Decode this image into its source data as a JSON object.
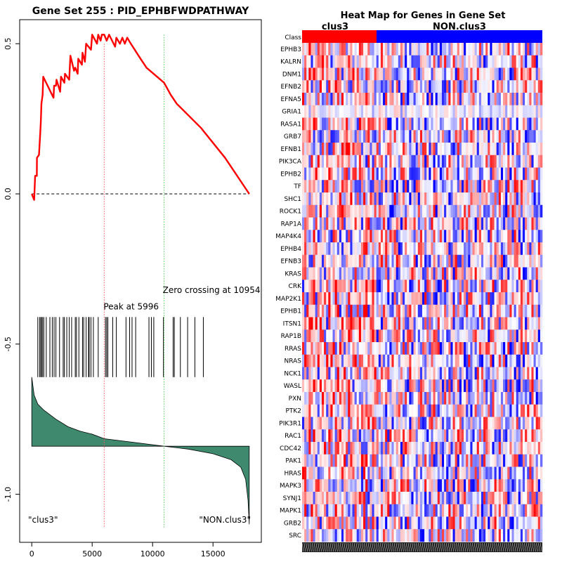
{
  "chart_data": [
    {
      "type": "line",
      "title": "Gene Set  255 : PID_EPHBFWDPATHWAY",
      "xlim": [
        -1000,
        19000
      ],
      "ylim": [
        -1.16,
        0.58
      ],
      "x_ticks": [
        0,
        5000,
        10000,
        15000
      ],
      "x_tick_labels": [
        "0",
        "5000",
        "10000",
        "15000"
      ],
      "y_ticks": [
        0.5,
        0.0,
        -0.5,
        -1.0
      ],
      "y_tick_labels": [
        "0.5",
        "0.0",
        "-0.5",
        "-1.0"
      ],
      "n_genes": 18000,
      "enrichment_curve": {
        "color": "#ff0000",
        "points": [
          [
            0,
            0.0
          ],
          [
            200,
            -0.02
          ],
          [
            280,
            0.06
          ],
          [
            420,
            0.06
          ],
          [
            430,
            0.12
          ],
          [
            600,
            0.13
          ],
          [
            700,
            0.2
          ],
          [
            750,
            0.24
          ],
          [
            800,
            0.3
          ],
          [
            900,
            0.33
          ],
          [
            950,
            0.39
          ],
          [
            1800,
            0.32
          ],
          [
            1850,
            0.36
          ],
          [
            2000,
            0.36
          ],
          [
            2050,
            0.38
          ],
          [
            2350,
            0.34
          ],
          [
            2420,
            0.39
          ],
          [
            2700,
            0.37
          ],
          [
            2750,
            0.4
          ],
          [
            3100,
            0.38
          ],
          [
            3200,
            0.46
          ],
          [
            3500,
            0.41
          ],
          [
            3600,
            0.42
          ],
          [
            3800,
            0.4
          ],
          [
            3850,
            0.45
          ],
          [
            4150,
            0.43
          ],
          [
            4200,
            0.47
          ],
          [
            4400,
            0.44
          ],
          [
            4500,
            0.5
          ],
          [
            4900,
            0.48
          ],
          [
            5000,
            0.53
          ],
          [
            5400,
            0.5
          ],
          [
            5500,
            0.53
          ],
          [
            5700,
            0.51
          ],
          [
            5800,
            0.53
          ],
          [
            5996,
            0.53
          ],
          [
            6200,
            0.51
          ],
          [
            6400,
            0.53
          ],
          [
            6900,
            0.49
          ],
          [
            7000,
            0.52
          ],
          [
            7300,
            0.5
          ],
          [
            7500,
            0.52
          ],
          [
            7700,
            0.5
          ],
          [
            7900,
            0.52
          ],
          [
            8200,
            0.5
          ],
          [
            9000,
            0.45
          ],
          [
            9500,
            0.42
          ],
          [
            10954,
            0.37
          ],
          [
            11500,
            0.33
          ],
          [
            12000,
            0.3
          ],
          [
            14000,
            0.22
          ],
          [
            14200,
            0.21
          ],
          [
            15000,
            0.17
          ],
          [
            16000,
            0.12
          ],
          [
            17000,
            0.06
          ],
          [
            18000,
            0.0
          ]
        ]
      },
      "baseline_y": 0.0,
      "peak": {
        "x": 5996,
        "label": "Peak at 5996",
        "color": "#ff5555"
      },
      "zero_crossing": {
        "x": 10954,
        "label": "Zero crossing at 10954",
        "color": "#55cc55"
      },
      "hit_positions": [
        500,
        650,
        750,
        800,
        900,
        1000,
        1200,
        1500,
        1700,
        1850,
        2000,
        2300,
        2600,
        2700,
        2900,
        3100,
        3300,
        3600,
        3700,
        3900,
        4200,
        4300,
        4500,
        4700,
        4750,
        4900,
        5100,
        5500,
        6100,
        6200,
        6300,
        6700,
        7000,
        7800,
        8100,
        8300,
        8600,
        9700,
        9900,
        10100,
        10900,
        11700,
        11800,
        12300,
        12900,
        13500,
        14200
      ],
      "hit_band": [
        -0.41,
        -0.61
      ],
      "ranked_metric": {
        "fill_color": "#3f8a6f",
        "baseline_y": -0.84,
        "points": [
          [
            0,
            -0.61
          ],
          [
            200,
            -0.67
          ],
          [
            500,
            -0.7
          ],
          [
            1000,
            -0.72
          ],
          [
            2000,
            -0.75
          ],
          [
            3000,
            -0.775
          ],
          [
            4000,
            -0.79
          ],
          [
            5000,
            -0.8
          ],
          [
            6000,
            -0.815
          ],
          [
            8000,
            -0.825
          ],
          [
            10954,
            -0.84
          ],
          [
            13000,
            -0.85
          ],
          [
            15000,
            -0.865
          ],
          [
            16500,
            -0.885
          ],
          [
            17300,
            -0.91
          ],
          [
            17700,
            -0.95
          ],
          [
            17900,
            -1.02
          ],
          [
            18000,
            -1.1
          ]
        ]
      },
      "left_label": "\"clus3\"",
      "right_label": "\"NON.clus3\""
    },
    {
      "type": "heatmap",
      "title": "Heat Map for Genes in Gene Set",
      "class_row_label": "Class",
      "classes": [
        {
          "name": "clus3",
          "color": "#ff0000",
          "fraction": 0.31
        },
        {
          "name": "NON.clus3",
          "color": "#0000ff",
          "fraction": 0.69
        }
      ],
      "genes": [
        "EPHB3",
        "KALRN",
        "DNM1",
        "EFNB2",
        "EFNA5",
        "GRIA1",
        "RASA1",
        "GRB7",
        "EFNB1",
        "PIK3CA",
        "EPHB2",
        "TF",
        "SHC1",
        "ROCK1",
        "RAP1A",
        "MAP4K4",
        "EPHB4",
        "EFNB3",
        "KRAS",
        "CRK",
        "MAP2K1",
        "EPHB1",
        "ITSN1",
        "RAP1B",
        "RRAS",
        "NRAS",
        "NCK1",
        "WASL",
        "PXN",
        "PTK2",
        "PIK3R1",
        "RAC1",
        "CDC42",
        "PAK1",
        "HRAS",
        "MAPK3",
        "SYNJ1",
        "MAPK1",
        "GRB2",
        "SRC"
      ],
      "low_color": "#0000ff",
      "mid_color": "#ffffff",
      "high_color": "#ff0000"
    }
  ]
}
